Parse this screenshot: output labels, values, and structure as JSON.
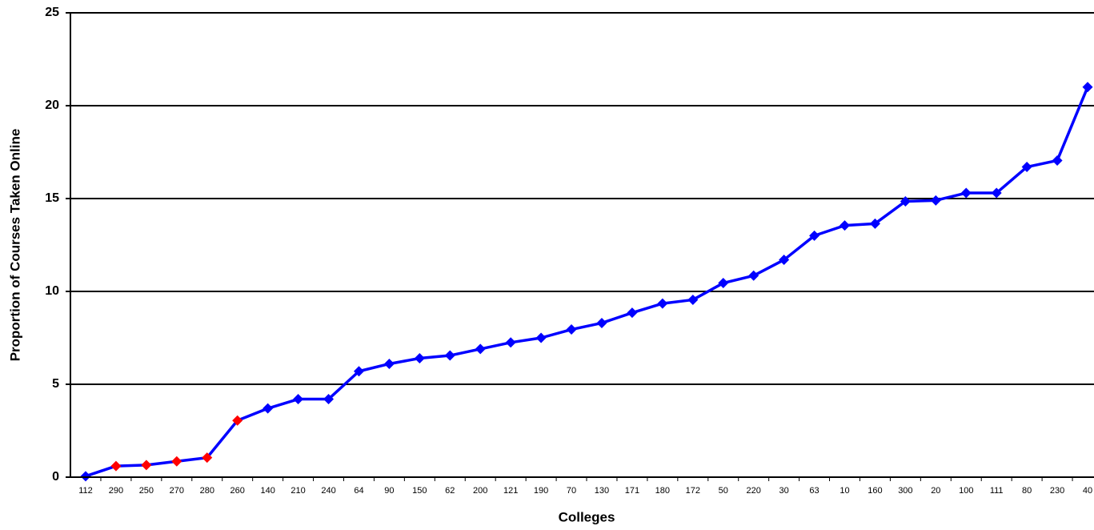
{
  "chart_data": {
    "type": "line",
    "x_label": "Colleges",
    "y_label": "Proportion of Courses Taken Online",
    "categories": [
      "112",
      "290",
      "250",
      "270",
      "280",
      "260",
      "140",
      "210",
      "240",
      "64",
      "90",
      "150",
      "62",
      "200",
      "121",
      "190",
      "70",
      "130",
      "171",
      "180",
      "172",
      "50",
      "220",
      "30",
      "63",
      "10",
      "160",
      "300",
      "20",
      "100",
      "111",
      "80",
      "230",
      "40"
    ],
    "series": [
      {
        "color": "#0000ff",
        "values": [
          0.05,
          0.6,
          0.65,
          0.85,
          1.05,
          3.05,
          3.7,
          4.2,
          4.2,
          5.7,
          6.1,
          6.4,
          6.55,
          6.9,
          7.25,
          7.5,
          7.95,
          8.3,
          8.85,
          9.35,
          9.55,
          10.45,
          10.85,
          11.7,
          13.0,
          13.55,
          13.65,
          14.85,
          14.9,
          15.3,
          15.3,
          16.7,
          17.05,
          21.0
        ],
        "point_colors": [
          "#0000ff",
          "#ff0000",
          "#ff0000",
          "#ff0000",
          "#ff0000",
          "#ff0000",
          "#0000ff",
          "#0000ff",
          "#0000ff",
          "#0000ff",
          "#0000ff",
          "#0000ff",
          "#0000ff",
          "#0000ff",
          "#0000ff",
          "#0000ff",
          "#0000ff",
          "#0000ff",
          "#0000ff",
          "#0000ff",
          "#0000ff",
          "#0000ff",
          "#0000ff",
          "#0000ff",
          "#0000ff",
          "#0000ff",
          "#0000ff",
          "#0000ff",
          "#0000ff",
          "#0000ff",
          "#0000ff",
          "#0000ff",
          "#0000ff",
          "#0000ff"
        ]
      }
    ],
    "ylim": [
      0,
      25
    ],
    "yticks": [
      0,
      5,
      10,
      15,
      20,
      25
    ],
    "grid": true
  }
}
